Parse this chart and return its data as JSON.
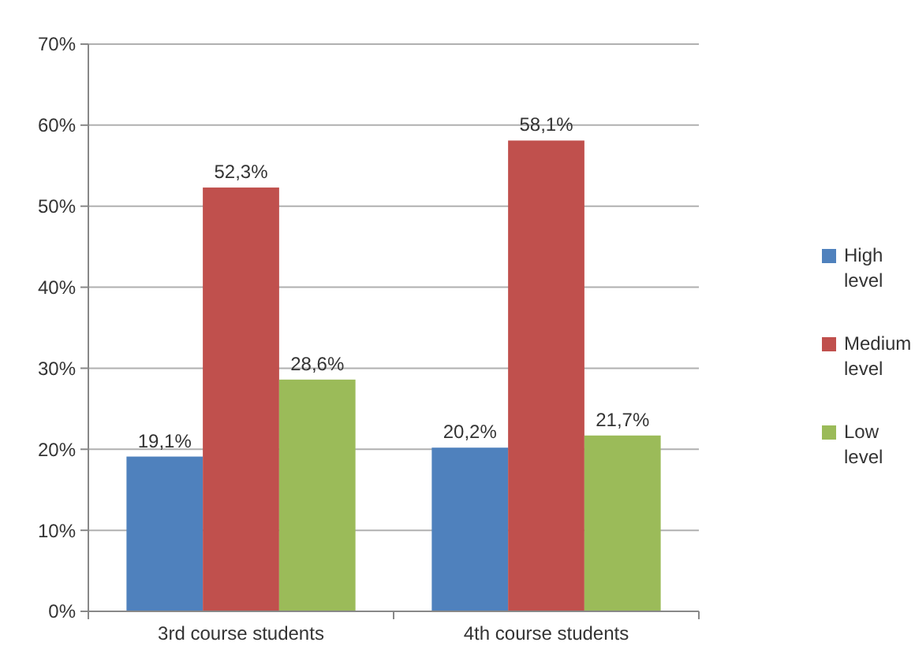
{
  "chart_data": {
    "type": "bar",
    "categories": [
      "3rd course students",
      "4th course students"
    ],
    "series": [
      {
        "name": "High level",
        "color": "#4f81bd",
        "values": [
          19.1,
          20.2
        ],
        "value_labels": [
          "19,1%",
          "20,2%"
        ]
      },
      {
        "name": "Medium level",
        "color": "#c0504d",
        "values": [
          52.3,
          58.1
        ],
        "value_labels": [
          "52,3%",
          "58,1%"
        ]
      },
      {
        "name": "Low level",
        "color": "#9bbb59",
        "values": [
          28.6,
          21.7
        ],
        "value_labels": [
          "28,6%",
          "21,7%"
        ]
      }
    ],
    "ylim": [
      0,
      70
    ],
    "yticks": [
      {
        "value": 0,
        "label": "0%"
      },
      {
        "value": 10,
        "label": "10%"
      },
      {
        "value": 20,
        "label": "20%"
      },
      {
        "value": 30,
        "label": "30%"
      },
      {
        "value": 40,
        "label": "40%"
      },
      {
        "value": 50,
        "label": "50%"
      },
      {
        "value": 60,
        "label": "60%"
      },
      {
        "value": 70,
        "label": "70%"
      }
    ],
    "grid": "y",
    "legend": "right"
  }
}
